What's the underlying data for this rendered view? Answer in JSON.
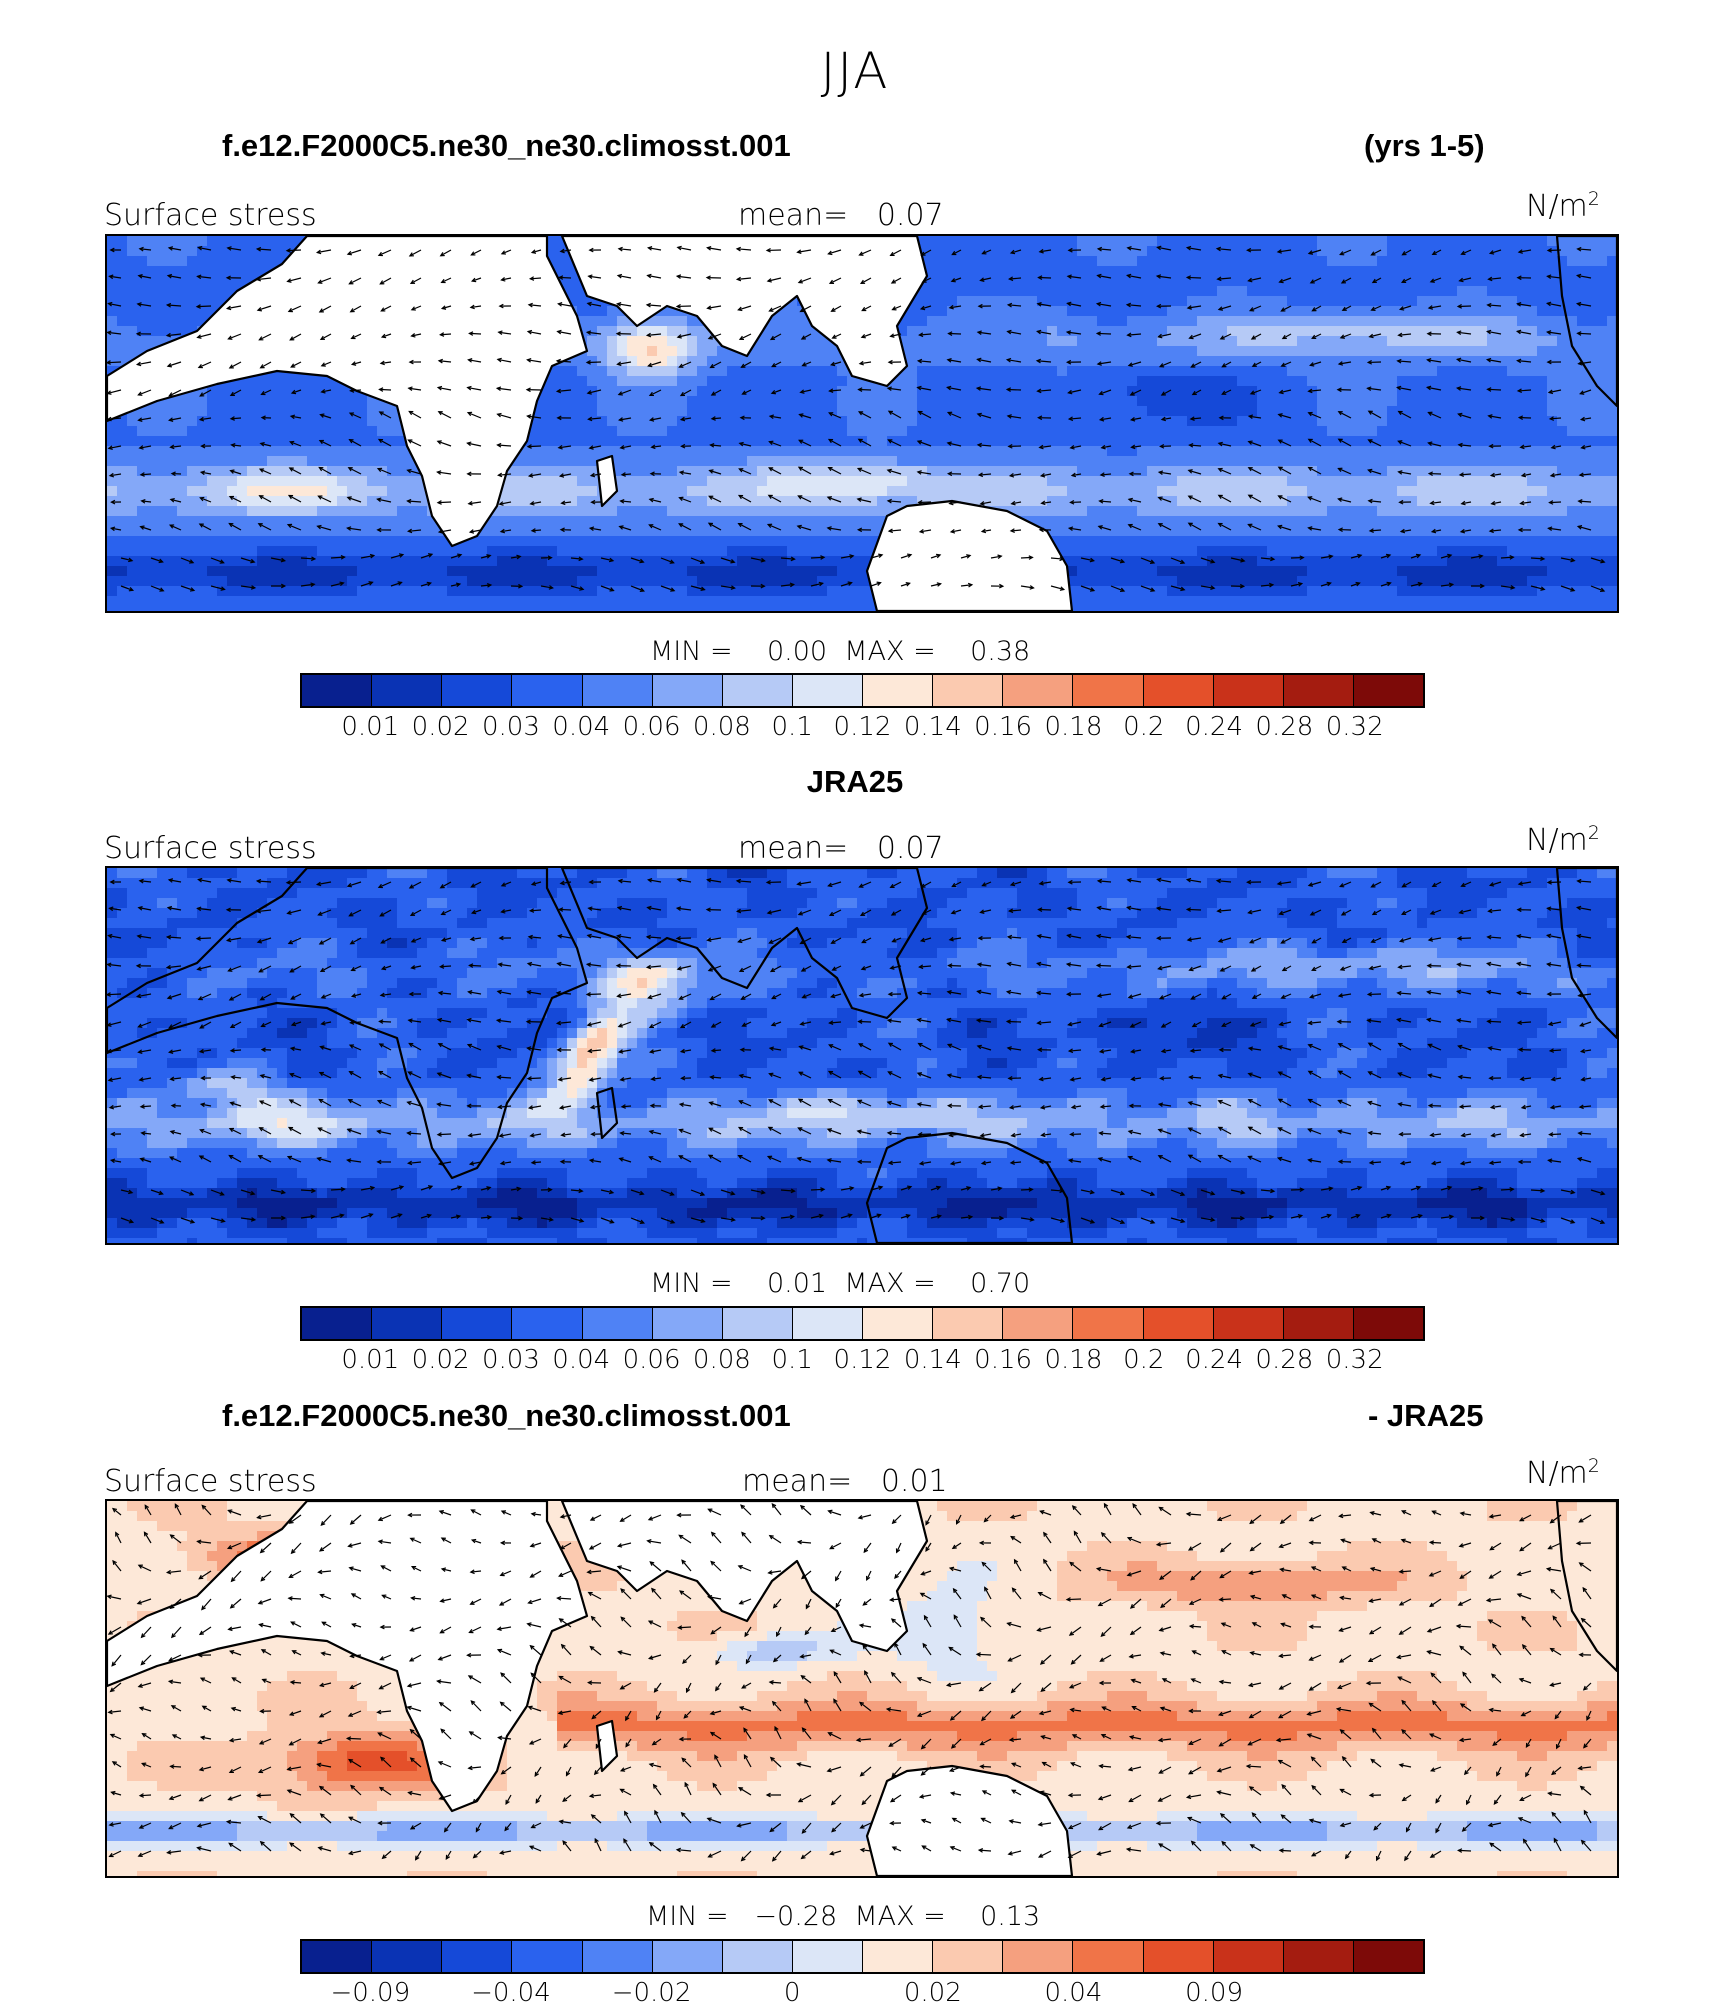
{
  "title": "JJA",
  "palette": [
    "#08208f",
    "#0a33b4",
    "#1549d8",
    "#2a62ee",
    "#4f82f5",
    "#84a8f8",
    "#b6caf6",
    "#dce6f7",
    "#fde8d8",
    "#fbcab0",
    "#f5a07f",
    "#f07448",
    "#e4502a",
    "#c9321a",
    "#a41c10",
    "#7d0a08"
  ],
  "panels": [
    {
      "title_left": "f.e12.F2000C5.ne30_ne30.climosst.001",
      "title_right": "(yrs 1-5)",
      "plot_label": "Surface stress",
      "mean_label": "mean=   0.07",
      "units": "N/m",
      "units_sup": "2",
      "minmax": "MIN =    0.00  MAX =    0.38",
      "colorbar_ticks": [
        "0.01",
        "0.02",
        "0.03",
        "0.04",
        "0.06",
        "0.08",
        "0.1",
        "0.12",
        "0.14",
        "0.16",
        "0.18",
        "0.2",
        "0.24",
        "0.28",
        "0.32"
      ],
      "field": "model"
    },
    {
      "title_left": "",
      "title_center": "JRA25",
      "title_right": "",
      "plot_label": "Surface stress",
      "mean_label": "mean=   0.07",
      "units": "N/m",
      "units_sup": "2",
      "minmax": "MIN =    0.01  MAX =    0.70",
      "colorbar_ticks": [
        "0.01",
        "0.02",
        "0.03",
        "0.04",
        "0.06",
        "0.08",
        "0.1",
        "0.12",
        "0.14",
        "0.16",
        "0.18",
        "0.2",
        "0.24",
        "0.28",
        "0.32"
      ],
      "field": "obs"
    },
    {
      "title_left": "f.e12.F2000C5.ne30_ne30.climosst.001",
      "title_right": "- JRA25",
      "plot_label": "Surface stress",
      "mean_label": "mean=   0.01",
      "units": "N/m",
      "units_sup": "2",
      "minmax": "MIN =   −0.28  MAX =    0.13",
      "colorbar_ticks": [
        "−0.09",
        "−0.04",
        "−0.02",
        "0",
        "0.02",
        "0.04",
        "0.09"
      ],
      "field": "diff"
    }
  ]
}
